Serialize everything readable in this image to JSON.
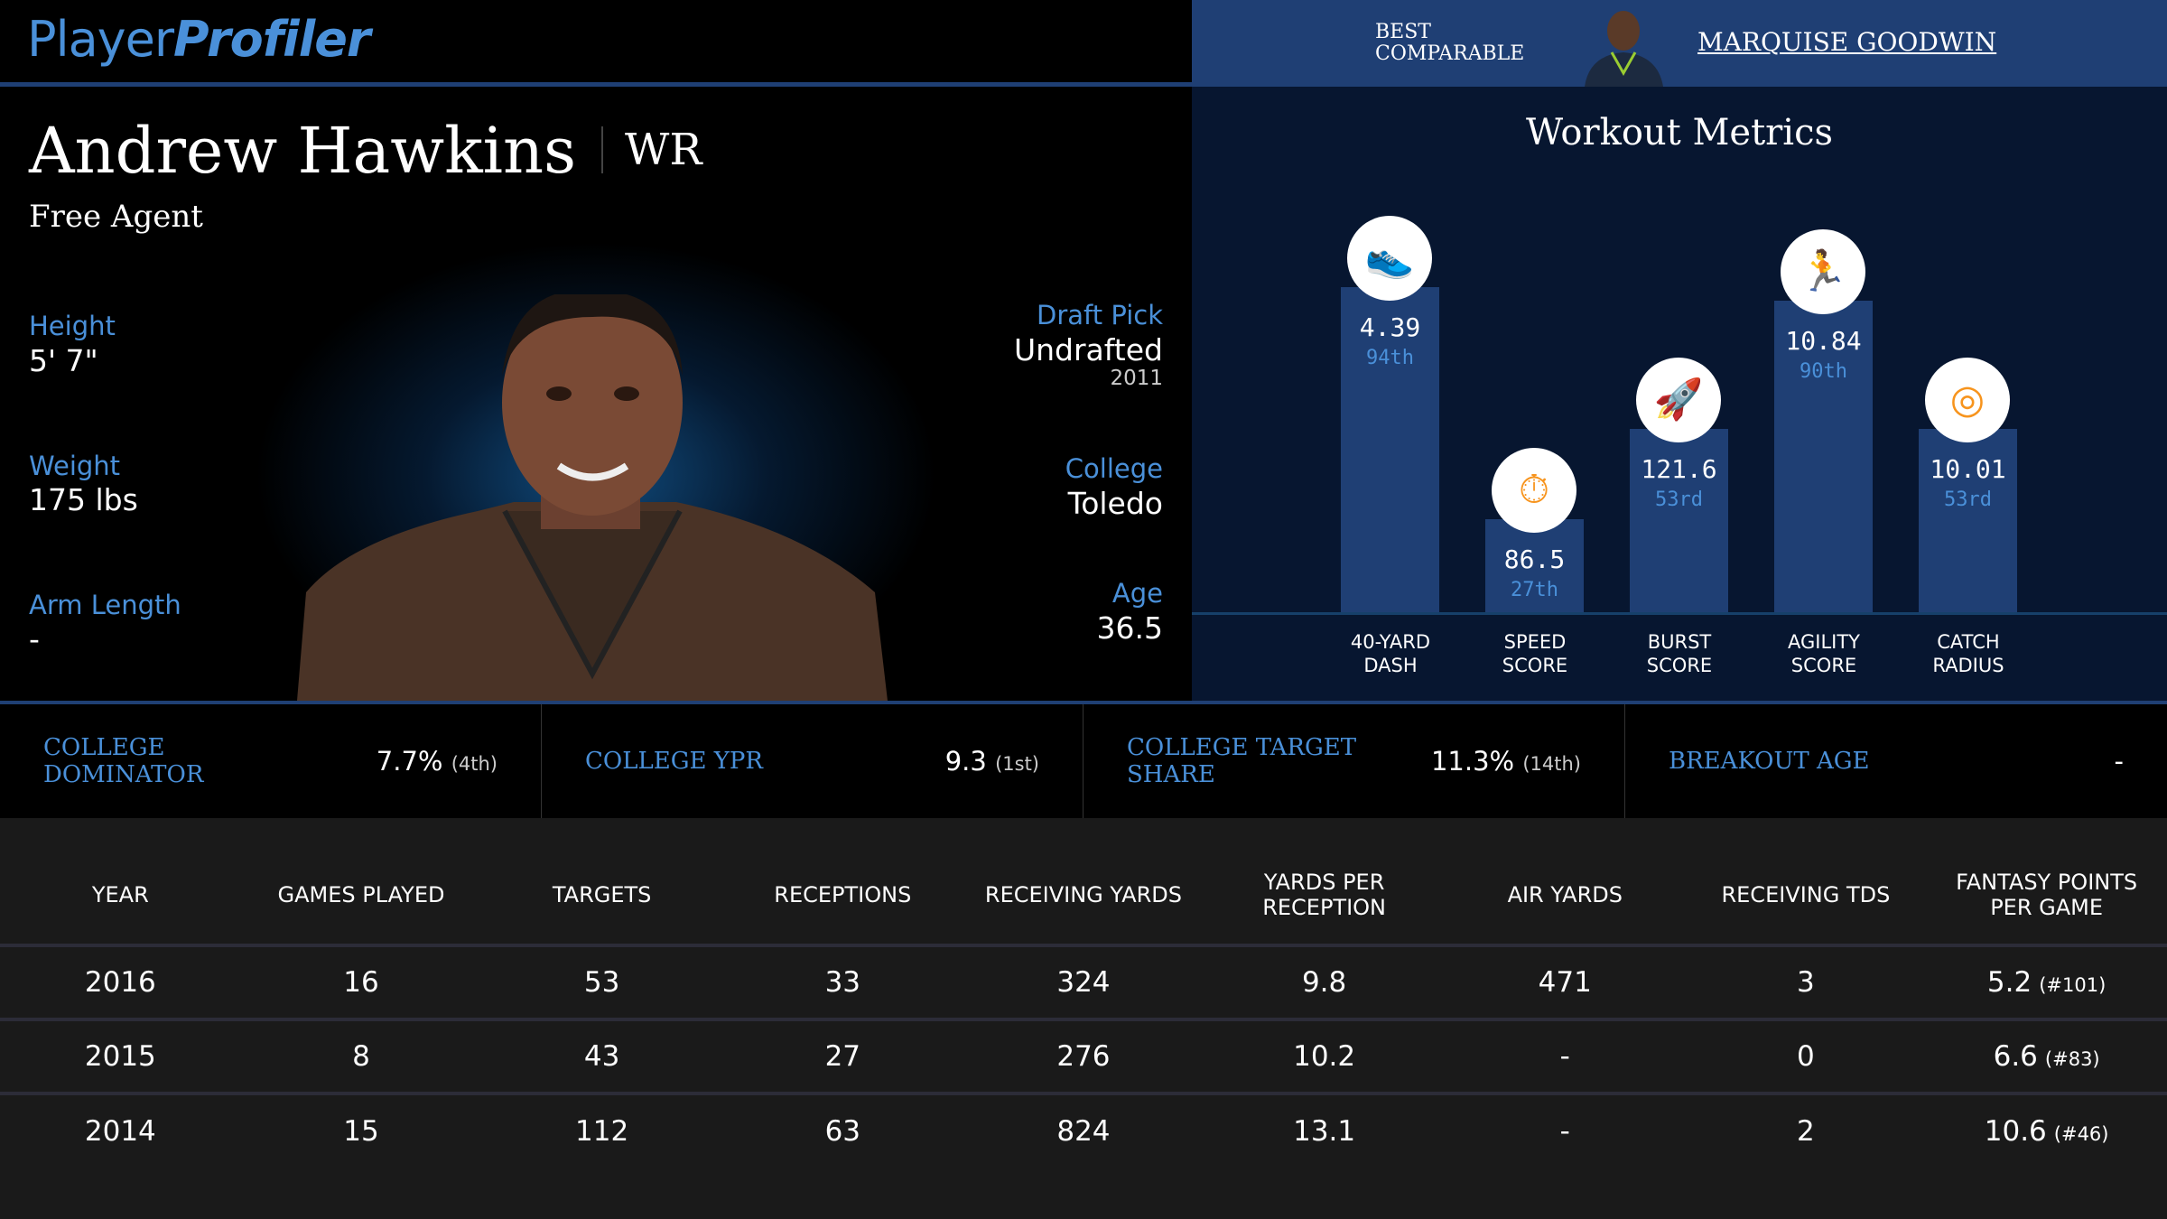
{
  "logo": {
    "part1": "Player",
    "part2": "Profiler"
  },
  "comparable": {
    "label_line1": "BEST",
    "label_line2": "COMPARABLE",
    "name": "MARQUISE GOODWIN"
  },
  "player": {
    "name": "Andrew Hawkins",
    "position": "WR",
    "team": "Free Agent",
    "height_label": "Height",
    "height": "5' 7\"",
    "weight_label": "Weight",
    "weight": "175 lbs",
    "arm_label": "Arm Length",
    "arm": "-",
    "draft_label": "Draft Pick",
    "draft": "Undrafted",
    "draft_year": "2011",
    "college_label": "College",
    "college": "Toledo",
    "age_label": "Age",
    "age": "36.5"
  },
  "workout": {
    "title": "Workout Metrics",
    "metrics": [
      {
        "l1": "40-YARD",
        "l2": "DASH",
        "value": "4.39",
        "pct": "94th",
        "pctn": 94,
        "icon": "shoe-icon"
      },
      {
        "l1": "SPEED",
        "l2": "SCORE",
        "value": "86.5",
        "pct": "27th",
        "pctn": 27,
        "icon": "stopwatch-icon"
      },
      {
        "l1": "BURST",
        "l2": "SCORE",
        "value": "121.6",
        "pct": "53rd",
        "pctn": 53,
        "icon": "rocket-icon"
      },
      {
        "l1": "AGILITY",
        "l2": "SCORE",
        "value": "10.84",
        "pct": "90th",
        "pctn": 90,
        "icon": "runner-icon"
      },
      {
        "l1": "CATCH",
        "l2": "RADIUS",
        "value": "10.01",
        "pct": "53rd",
        "pctn": 53,
        "icon": "target-icon"
      }
    ],
    "colors": {
      "bar": "#1f3f74",
      "icon": "#f7941d"
    }
  },
  "college": [
    {
      "label": "COLLEGE DOMINATOR",
      "value": "7.7%",
      "rank": "(4th)"
    },
    {
      "label": "COLLEGE YPR",
      "value": "9.3",
      "rank": "(1st)"
    },
    {
      "label": "COLLEGE TARGET SHARE",
      "value": "11.3%",
      "rank": "(14th)"
    },
    {
      "label": "BREAKOUT AGE",
      "value": "-",
      "rank": ""
    }
  ],
  "table": {
    "headers": [
      "YEAR",
      "GAMES PLAYED",
      "TARGETS",
      "RECEPTIONS",
      "RECEIVING YARDS",
      "YARDS PER RECEPTION",
      "AIR YARDS",
      "RECEIVING TDS",
      "FANTASY POINTS PER GAME"
    ],
    "rows": [
      [
        "2016",
        "16",
        "53",
        "33",
        "324",
        "9.8",
        "471",
        "3",
        "5.2",
        "(#101)"
      ],
      [
        "2015",
        "8",
        "43",
        "27",
        "276",
        "10.2",
        "-",
        "0",
        "6.6",
        "(#83)"
      ],
      [
        "2014",
        "15",
        "112",
        "63",
        "824",
        "13.1",
        "-",
        "2",
        "10.6",
        "(#46)"
      ]
    ]
  }
}
